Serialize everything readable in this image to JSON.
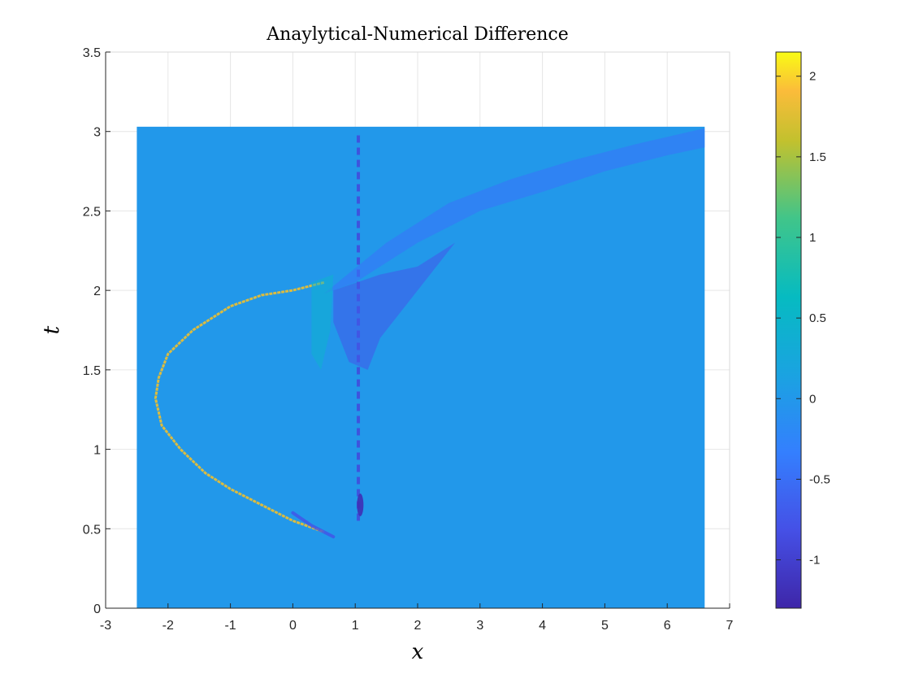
{
  "chart_data": {
    "type": "heatmap",
    "title": "Anaylytical-Numerical Difference",
    "xlabel": "x",
    "ylabel": "t",
    "xlim": [
      -3,
      7
    ],
    "ylim": [
      0,
      3.5
    ],
    "xticks": [
      -3,
      -2,
      -1,
      0,
      1,
      2,
      3,
      4,
      5,
      6,
      7
    ],
    "yticks": [
      0,
      0.5,
      1,
      1.5,
      2,
      2.5,
      3,
      3.5
    ],
    "xtick_labels": [
      "-3",
      "-2",
      "-1",
      "0",
      "1",
      "2",
      "3",
      "4",
      "5",
      "6",
      "7"
    ],
    "ytick_labels": [
      "0",
      "0.5",
      "1",
      "1.5",
      "2",
      "2.5",
      "3",
      "3.5"
    ],
    "grid": true,
    "colormap": "parula",
    "data_extent": {
      "x": [
        -2.5,
        6.6
      ],
      "t": [
        0,
        3.03
      ]
    },
    "background_value": 0,
    "colorbar": {
      "range": [
        -1.3,
        2.15
      ],
      "ticks": [
        -1,
        -0.5,
        0,
        0.5,
        1,
        1.5,
        2
      ],
      "tick_labels": [
        "-1",
        "-0.5",
        "0",
        "0.5",
        "1",
        "1.5",
        "2"
      ]
    },
    "features": [
      {
        "name": "parabolic-positive-front",
        "kind": "curve",
        "value": 1.8,
        "vertex": [
          -2.2,
          1.32
        ],
        "points_upper": [
          [
            -2.2,
            1.32
          ],
          [
            -2.15,
            1.45
          ],
          [
            -2.0,
            1.6
          ],
          [
            -1.6,
            1.75
          ],
          [
            -1.0,
            1.9
          ],
          [
            -0.5,
            1.97
          ],
          [
            0.0,
            2.0
          ],
          [
            0.5,
            2.05
          ]
        ],
        "points_lower": [
          [
            -2.2,
            1.32
          ],
          [
            -2.1,
            1.15
          ],
          [
            -1.8,
            1.0
          ],
          [
            -1.4,
            0.85
          ],
          [
            -1.0,
            0.75
          ],
          [
            -0.5,
            0.65
          ],
          [
            0.0,
            0.55
          ],
          [
            0.5,
            0.48
          ]
        ]
      },
      {
        "name": "vertical-negative-line",
        "kind": "line",
        "value": -0.9,
        "x": 1.05,
        "t_range": [
          0.55,
          3.0
        ]
      },
      {
        "name": "negative-spot",
        "kind": "spot",
        "value": -1.2,
        "x": 1.08,
        "t": 0.65
      },
      {
        "name": "upper-negative-band",
        "kind": "band",
        "value": -0.45,
        "points_top": [
          [
            0.5,
            1.98
          ],
          [
            1.5,
            2.3
          ],
          [
            2.5,
            2.55
          ],
          [
            3.5,
            2.7
          ],
          [
            4.5,
            2.82
          ],
          [
            5.5,
            2.92
          ],
          [
            6.6,
            3.02
          ]
        ],
        "points_bottom": [
          [
            0.5,
            1.98
          ],
          [
            1.0,
            2.05
          ],
          [
            2.0,
            2.3
          ],
          [
            3.0,
            2.5
          ],
          [
            4.0,
            2.62
          ],
          [
            5.0,
            2.75
          ],
          [
            6.0,
            2.85
          ],
          [
            6.6,
            2.9
          ]
        ]
      },
      {
        "name": "positive-wedge",
        "kind": "region",
        "value": 0.45,
        "points": [
          [
            0.3,
            2.05
          ],
          [
            0.65,
            2.1
          ],
          [
            0.6,
            1.75
          ],
          [
            0.45,
            1.5
          ],
          [
            0.3,
            1.6
          ]
        ]
      },
      {
        "name": "negative-ripples",
        "kind": "region",
        "value": -0.75,
        "points": [
          [
            0.65,
            2.0
          ],
          [
            1.4,
            2.1
          ],
          [
            2.0,
            2.15
          ],
          [
            2.6,
            2.3
          ],
          [
            1.8,
            1.9
          ],
          [
            1.4,
            1.7
          ],
          [
            1.2,
            1.5
          ],
          [
            0.9,
            1.55
          ],
          [
            0.65,
            1.8
          ]
        ]
      },
      {
        "name": "lower-negative-tail",
        "kind": "curve",
        "value": -0.8,
        "points": [
          [
            0.0,
            0.6
          ],
          [
            0.3,
            0.52
          ],
          [
            0.65,
            0.45
          ]
        ]
      }
    ]
  }
}
